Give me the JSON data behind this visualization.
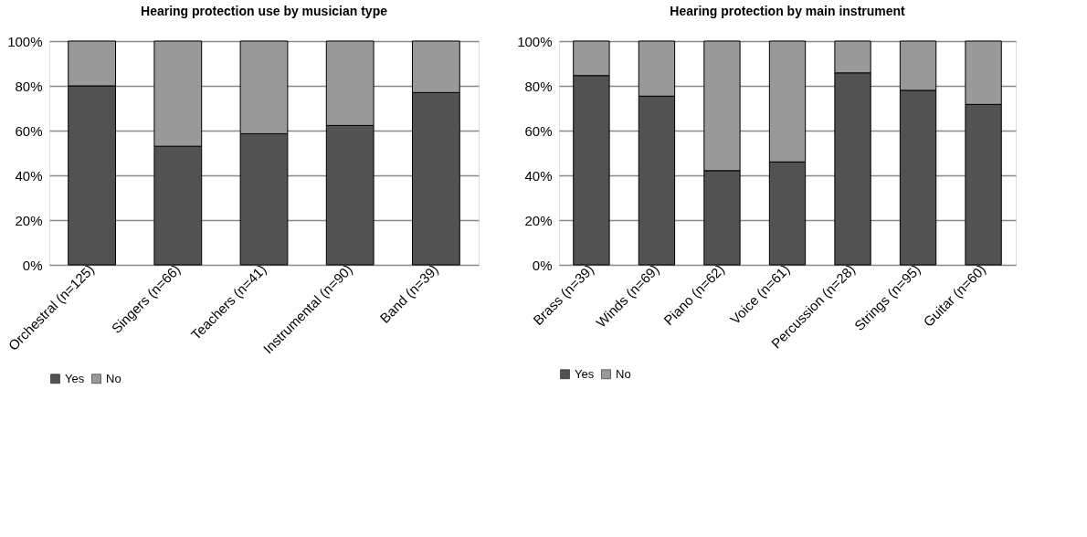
{
  "chart_data": [
    {
      "type": "bar",
      "title": "Hearing protection use by musician type",
      "stacked": true,
      "categories": [
        "Orchestral (n=125)",
        "Singers (n=66)",
        "Teachers (n=41)",
        "Instrumental (n=90)",
        "Band (n=39)"
      ],
      "series": [
        {
          "name": "Yes",
          "color": "#525252",
          "values": [
            80,
            53,
            58.6,
            62.3,
            77
          ]
        },
        {
          "name": "No",
          "color": "#999999",
          "values": [
            20,
            47,
            41.4,
            37.7,
            23
          ]
        }
      ],
      "ylim": [
        0,
        100
      ],
      "yticks": [
        {
          "value": 0,
          "label": "0%"
        },
        {
          "value": 20,
          "label": "20%"
        },
        {
          "value": 40,
          "label": "40%"
        },
        {
          "value": 60,
          "label": "60%"
        },
        {
          "value": 80,
          "label": "80%"
        },
        {
          "value": 100,
          "label": "100%"
        }
      ],
      "grid": "y",
      "legend": "bottom"
    },
    {
      "type": "bar",
      "title": "Hearing protection by main instrument",
      "stacked": true,
      "categories": [
        "Brass (n=39)",
        "Winds (n=69)",
        "Piano (n=62)",
        "Voice (n=61)",
        "Percussion (n=28)",
        "Strings (n=95)",
        "Guitar (n=60)"
      ],
      "series": [
        {
          "name": "Yes",
          "color": "#525252",
          "values": [
            84.6,
            75.4,
            42.1,
            46,
            85.8,
            78,
            71.7
          ]
        },
        {
          "name": "No",
          "color": "#999999",
          "values": [
            15.4,
            24.6,
            57.9,
            54,
            14.2,
            22,
            28.3
          ]
        }
      ],
      "ylim": [
        0,
        100
      ],
      "yticks": [
        {
          "value": 0,
          "label": "0%"
        },
        {
          "value": 20,
          "label": "20%"
        },
        {
          "value": 40,
          "label": "40%"
        },
        {
          "value": 60,
          "label": "60%"
        },
        {
          "value": 80,
          "label": "80%"
        },
        {
          "value": 100,
          "label": "100%"
        }
      ],
      "grid": "y",
      "legend": "bottom"
    }
  ]
}
